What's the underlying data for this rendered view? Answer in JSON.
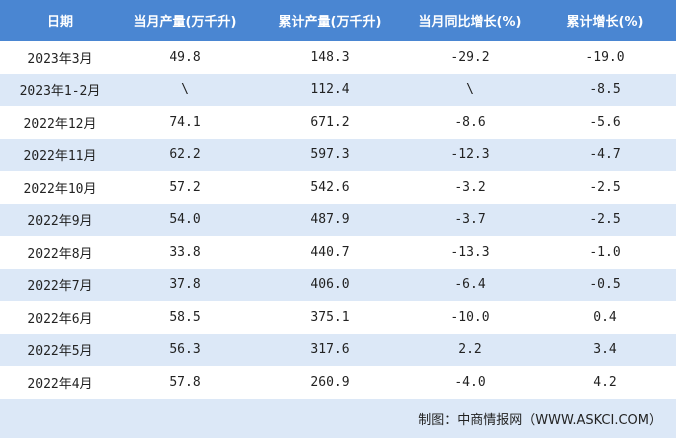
{
  "table": {
    "header": [
      "日期",
      "当月产量(万千升)",
      "累计产量(万千升)",
      "当月同比增长(%)",
      "累计增长(%)"
    ],
    "rows": [
      [
        "2023年3月",
        "49.8",
        "148.3",
        "-29.2",
        "-19.0"
      ],
      [
        "2023年1-2月",
        "\\",
        "112.4",
        "\\",
        "-8.5"
      ],
      [
        "2022年12月",
        "74.1",
        "671.2",
        "-8.6",
        "-5.6"
      ],
      [
        "2022年11月",
        "62.2",
        "597.3",
        "-12.3",
        "-4.7"
      ],
      [
        "2022年10月",
        "57.2",
        "542.6",
        "-3.2",
        "-2.5"
      ],
      [
        "2022年9月",
        "54.0",
        "487.9",
        "-3.7",
        "-2.5"
      ],
      [
        "2022年8月",
        "33.8",
        "440.7",
        "-13.3",
        "-1.0"
      ],
      [
        "2022年7月",
        "37.8",
        "406.0",
        "-6.4",
        "-0.5"
      ],
      [
        "2022年6月",
        "58.5",
        "375.1",
        "-10.0",
        "0.4"
      ],
      [
        "2022年5月",
        "56.3",
        "317.6",
        "2.2",
        "3.4"
      ],
      [
        "2022年4月",
        "57.8",
        "260.9",
        "-4.0",
        "4.2"
      ]
    ],
    "footer": "制图：中商情报网（WWW.ASKCI.COM）"
  }
}
